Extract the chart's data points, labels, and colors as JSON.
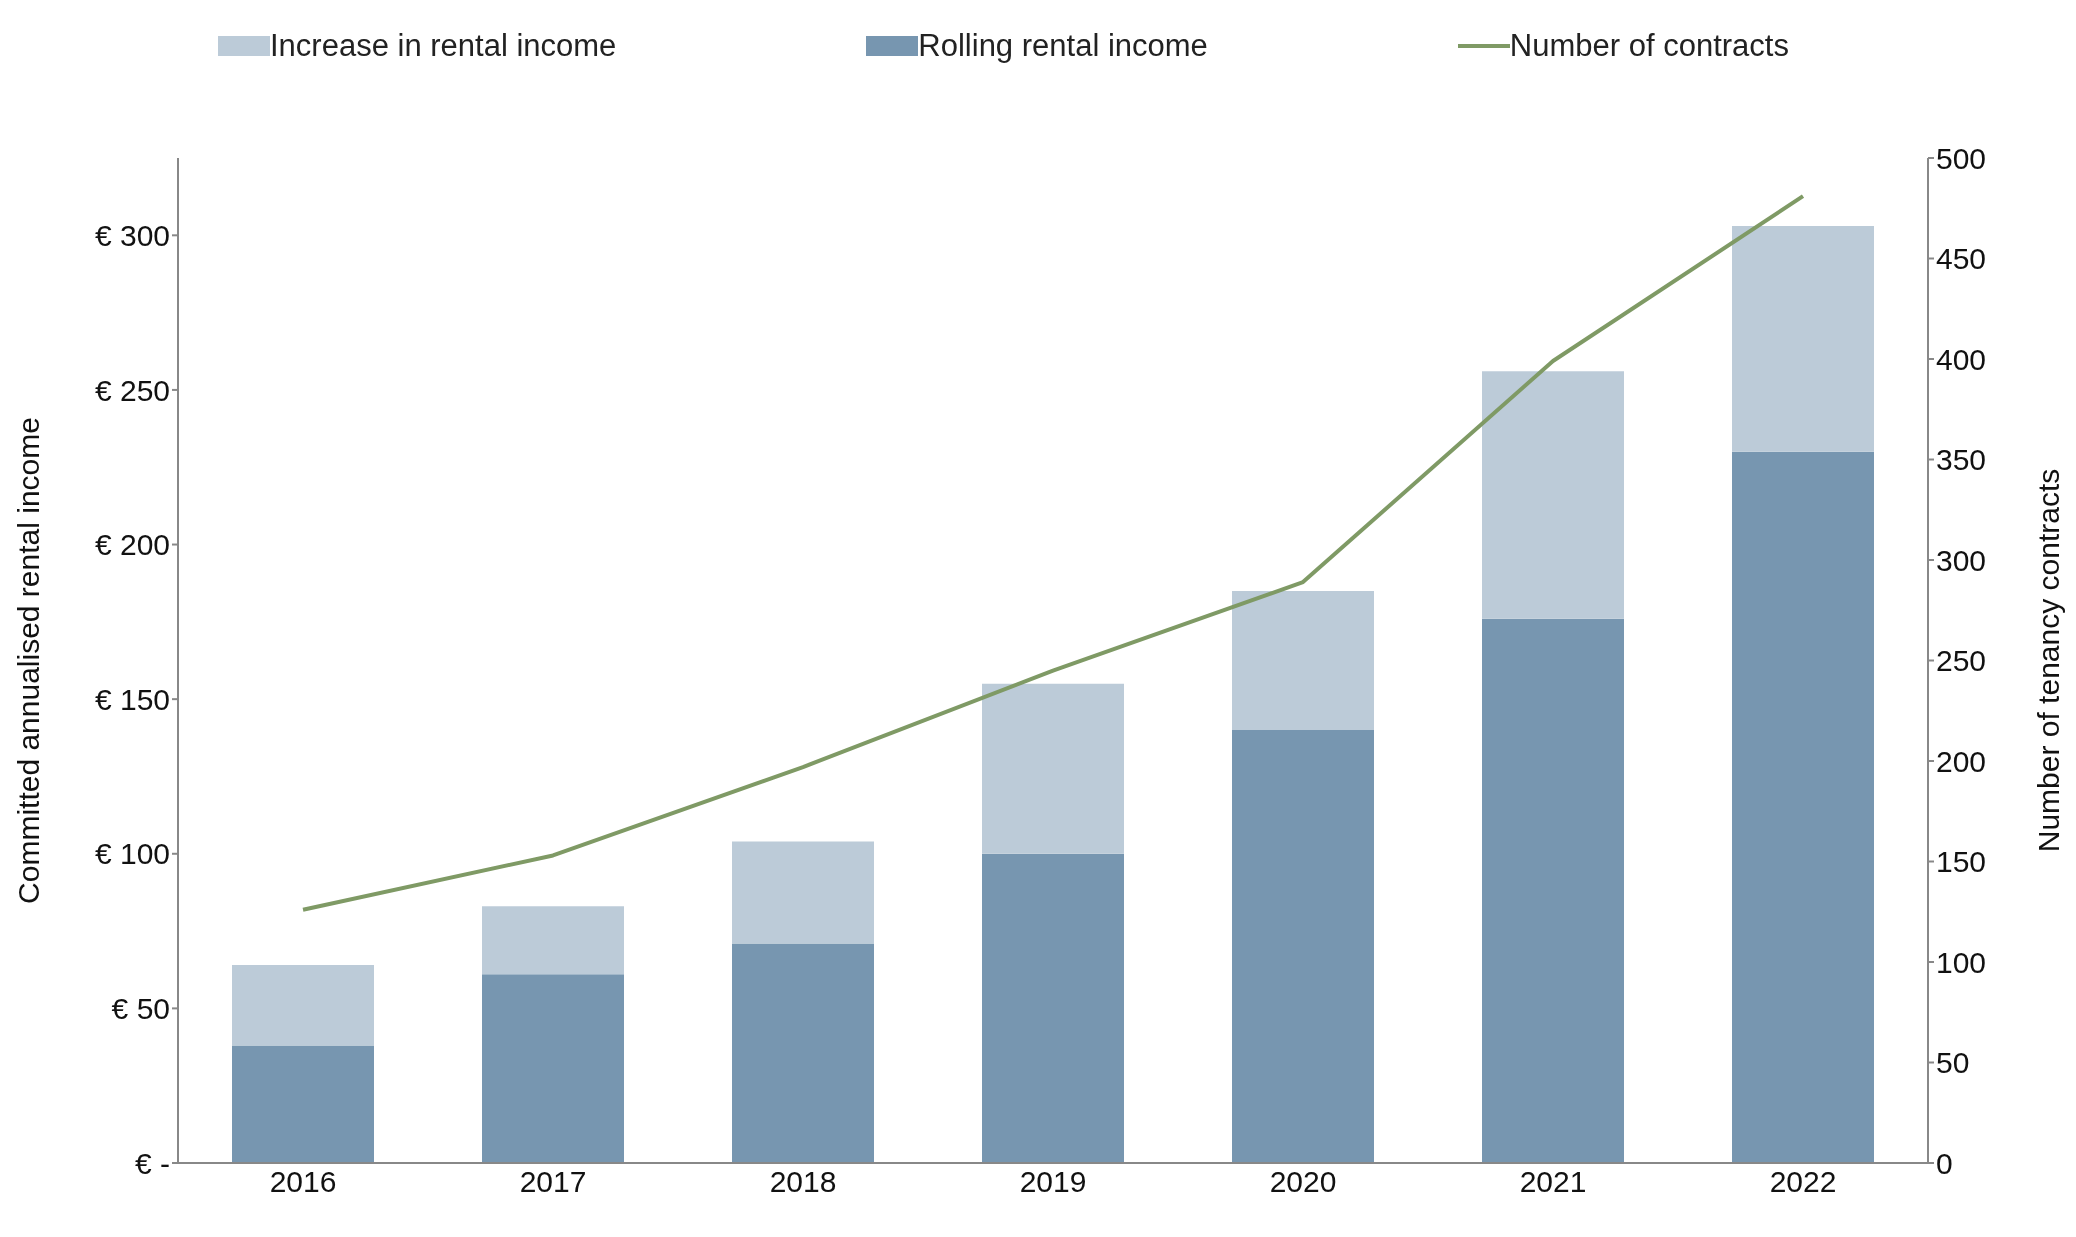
{
  "chart_data": {
    "type": "bar",
    "stacked": true,
    "categories": [
      "2016",
      "2017",
      "2018",
      "2019",
      "2020",
      "2021",
      "2022"
    ],
    "ylabel": "Committed annualised rental income",
    "y2label": "Number of tenancy contracts",
    "ylim": [
      0,
      325
    ],
    "yticks": [
      {
        "value": 0,
        "label": "€ -"
      },
      {
        "value": 50,
        "label": "€ 50"
      },
      {
        "value": 100,
        "label": "€ 100"
      },
      {
        "value": 150,
        "label": "€ 150"
      },
      {
        "value": 200,
        "label": "€ 200"
      },
      {
        "value": 250,
        "label": "€ 250"
      },
      {
        "value": 300,
        "label": "€ 300"
      }
    ],
    "y2lim": [
      0,
      500
    ],
    "y2ticks": [
      0,
      50,
      100,
      150,
      200,
      250,
      300,
      350,
      400,
      450,
      500
    ],
    "series": [
      {
        "name": "Rolling rental income",
        "color": "#7796b0",
        "values": [
          38,
          61,
          71,
          100,
          140,
          176,
          230
        ]
      },
      {
        "name": "Increase in rental income",
        "color": "#bccbd8",
        "values": [
          26,
          22,
          33,
          55,
          45,
          80,
          73
        ]
      },
      {
        "name": "Number of contracts",
        "type": "line",
        "axis": "y2",
        "color": "#7f9a65",
        "marker": "none",
        "values": [
          126,
          153,
          197,
          245,
          289,
          399,
          481
        ]
      }
    ],
    "legend": "top"
  }
}
